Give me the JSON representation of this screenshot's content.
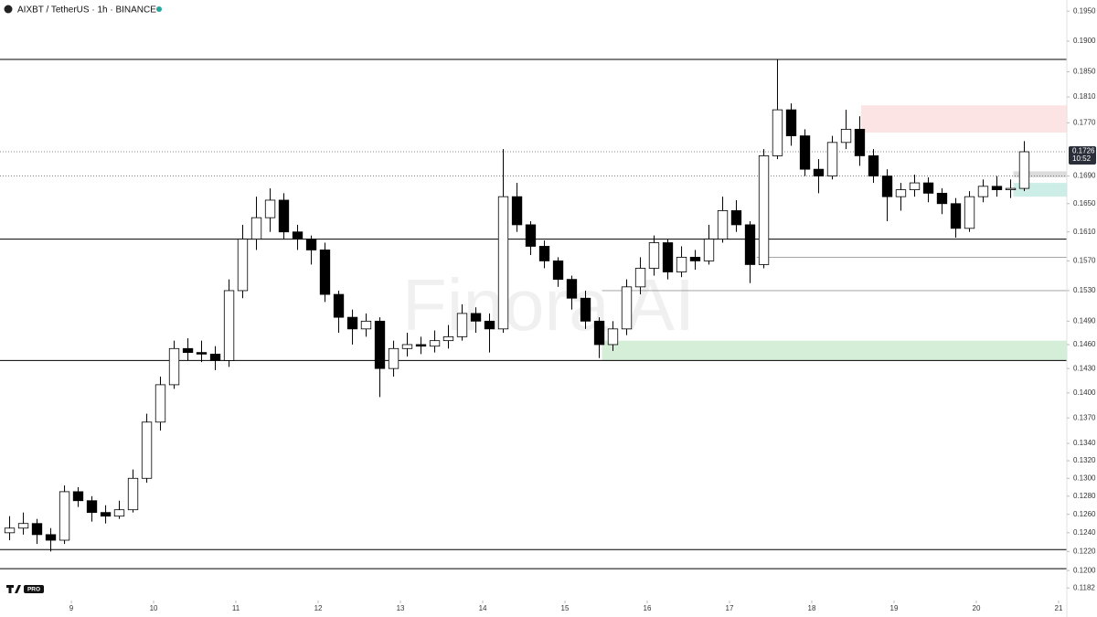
{
  "header": {
    "symbol": "AIXBT / TetherUS · 1h · BINANCE",
    "logo": "PRO"
  },
  "watermark": "Finora AI",
  "chart_data": {
    "type": "candlestick",
    "x": [
      8.25,
      8.417,
      8.583,
      8.75,
      8.917,
      9.083,
      9.25,
      9.417,
      9.583,
      9.75,
      9.917,
      10.083,
      10.25,
      10.417,
      10.583,
      10.75,
      10.917,
      11.083,
      11.25,
      11.417,
      11.583,
      11.75,
      11.917,
      12.083,
      12.25,
      12.417,
      12.583,
      12.75,
      12.917,
      13.083,
      13.25,
      13.417,
      13.583,
      13.75,
      13.917,
      14.083,
      14.25,
      14.417,
      14.583,
      14.75,
      14.917,
      15.083,
      15.25,
      15.417,
      15.583,
      15.75,
      15.917,
      16.083,
      16.25,
      16.417,
      16.583,
      16.75,
      16.917,
      17.083,
      17.25,
      17.417,
      17.583,
      17.75,
      17.917,
      18.083,
      18.25,
      18.417,
      18.583,
      18.75,
      18.917,
      19.083,
      19.25,
      19.417,
      19.583,
      19.75,
      19.917,
      20.083,
      20.25,
      20.417,
      20.583
    ],
    "open": [
      0.124,
      0.1245,
      0.125,
      0.1238,
      0.1232,
      0.1285,
      0.1275,
      0.1262,
      0.1258,
      0.1265,
      0.13,
      0.1365,
      0.141,
      0.1455,
      0.145,
      0.1448,
      0.144,
      0.153,
      0.16,
      0.163,
      0.1655,
      0.161,
      0.16,
      0.1585,
      0.1525,
      0.1495,
      0.148,
      0.149,
      0.143,
      0.1455,
      0.146,
      0.1458,
      0.1465,
      0.147,
      0.15,
      0.149,
      0.148,
      0.166,
      0.162,
      0.159,
      0.157,
      0.1545,
      0.152,
      0.149,
      0.146,
      0.148,
      0.1535,
      0.156,
      0.1595,
      0.1555,
      0.1575,
      0.157,
      0.16,
      0.164,
      0.162,
      0.1565,
      0.172,
      0.179,
      0.175,
      0.17,
      0.169,
      0.174,
      0.176,
      0.172,
      0.169,
      0.166,
      0.167,
      0.168,
      0.1665,
      0.165,
      0.1615,
      0.166,
      0.1675,
      0.167,
      0.1672
    ],
    "high": [
      0.1258,
      0.1262,
      0.1255,
      0.1245,
      0.1292,
      0.129,
      0.128,
      0.127,
      0.1275,
      0.131,
      0.1375,
      0.142,
      0.1465,
      0.1468,
      0.1465,
      0.1458,
      0.1545,
      0.162,
      0.166,
      0.1672,
      0.1665,
      0.162,
      0.1605,
      0.1595,
      0.153,
      0.1505,
      0.15,
      0.1495,
      0.1465,
      0.1475,
      0.147,
      0.1478,
      0.1485,
      0.1512,
      0.1508,
      0.15,
      0.173,
      0.168,
      0.1625,
      0.1598,
      0.1575,
      0.155,
      0.153,
      0.1495,
      0.149,
      0.1545,
      0.1575,
      0.1605,
      0.16,
      0.159,
      0.1585,
      0.162,
      0.166,
      0.1655,
      0.1625,
      0.173,
      0.187,
      0.18,
      0.176,
      0.1715,
      0.175,
      0.179,
      0.178,
      0.173,
      0.17,
      0.168,
      0.1692,
      0.1688,
      0.1672,
      0.1658,
      0.1668,
      0.1685,
      0.169,
      0.1685,
      0.1742
    ],
    "low": [
      0.1232,
      0.1238,
      0.1228,
      0.122,
      0.1228,
      0.1268,
      0.1252,
      0.125,
      0.1255,
      0.1262,
      0.1295,
      0.1355,
      0.1405,
      0.144,
      0.1438,
      0.1428,
      0.1432,
      0.152,
      0.1585,
      0.161,
      0.16,
      0.1585,
      0.1565,
      0.1515,
      0.1475,
      0.146,
      0.147,
      0.1395,
      0.142,
      0.1445,
      0.1448,
      0.145,
      0.1455,
      0.1465,
      0.1475,
      0.145,
      0.1475,
      0.161,
      0.1578,
      0.156,
      0.1535,
      0.1505,
      0.148,
      0.1443,
      0.1452,
      0.1472,
      0.1525,
      0.155,
      0.1545,
      0.1548,
      0.1558,
      0.1565,
      0.1595,
      0.161,
      0.154,
      0.156,
      0.1715,
      0.1735,
      0.169,
      0.1665,
      0.1685,
      0.173,
      0.1705,
      0.168,
      0.1625,
      0.164,
      0.166,
      0.1652,
      0.1635,
      0.1602,
      0.161,
      0.1652,
      0.166,
      0.1658,
      0.1668
    ],
    "close": [
      0.1245,
      0.125,
      0.1238,
      0.1232,
      0.1285,
      0.1275,
      0.1262,
      0.1258,
      0.1265,
      0.13,
      0.1365,
      0.141,
      0.1455,
      0.145,
      0.1448,
      0.144,
      0.153,
      0.16,
      0.163,
      0.1655,
      0.161,
      0.16,
      0.1585,
      0.1525,
      0.1495,
      0.148,
      0.149,
      0.143,
      0.1455,
      0.146,
      0.1458,
      0.1465,
      0.147,
      0.15,
      0.149,
      0.148,
      0.166,
      0.162,
      0.159,
      0.157,
      0.1545,
      0.152,
      0.149,
      0.146,
      0.148,
      0.1535,
      0.156,
      0.1595,
      0.1555,
      0.1575,
      0.157,
      0.16,
      0.164,
      0.162,
      0.1565,
      0.172,
      0.179,
      0.175,
      0.17,
      0.169,
      0.174,
      0.176,
      0.172,
      0.169,
      0.166,
      0.167,
      0.168,
      0.1665,
      0.165,
      0.1615,
      0.166,
      0.1675,
      0.167,
      0.1672,
      0.1726
    ],
    "up_color": "#ffffff",
    "down_color": "#000000",
    "xlim": [
      8.133,
      21.1
    ],
    "xticks": [
      9,
      10,
      11,
      12,
      13,
      14,
      15,
      16,
      17,
      18,
      19,
      20,
      21
    ],
    "ylim": [
      0.1171,
      0.1969
    ],
    "log_scale": true,
    "yticks": [
      {
        "value": 0.195,
        "label": "0.1950"
      },
      {
        "value": 0.19,
        "label": "0.1900"
      },
      {
        "value": 0.185,
        "label": "0.1850"
      },
      {
        "value": 0.181,
        "label": "0.1810"
      },
      {
        "value": 0.177,
        "label": "0.1770"
      },
      {
        "value": 0.169,
        "label": "0.1690"
      },
      {
        "value": 0.165,
        "label": "0.1650"
      },
      {
        "value": 0.161,
        "label": "0.1610"
      },
      {
        "value": 0.157,
        "label": "0.1570"
      },
      {
        "value": 0.153,
        "label": "0.1530"
      },
      {
        "value": 0.149,
        "label": "0.1490"
      },
      {
        "value": 0.146,
        "label": "0.1460"
      },
      {
        "value": 0.143,
        "label": "0.1430"
      },
      {
        "value": 0.14,
        "label": "0.1400"
      },
      {
        "value": 0.137,
        "label": "0.1370"
      },
      {
        "value": 0.134,
        "label": "0.1340"
      },
      {
        "value": 0.132,
        "label": "0.1320"
      },
      {
        "value": 0.13,
        "label": "0.1300"
      },
      {
        "value": 0.128,
        "label": "0.1280"
      },
      {
        "value": 0.126,
        "label": "0.1260"
      },
      {
        "value": 0.124,
        "label": "0.1240"
      },
      {
        "value": 0.122,
        "label": "0.1220"
      },
      {
        "value": 0.12,
        "label": "0.1200"
      },
      0.1182
    ],
    "last_price": 0.1726,
    "countdown": "10:52",
    "levels": [
      0.187,
      0.16,
      0.144,
      0.1222,
      0.1202
    ],
    "dotted_levels": [
      0.169
    ],
    "segments": [
      {
        "value": 0.1575,
        "from": 17.33
      },
      {
        "value": 0.153,
        "from": 15.45
      }
    ],
    "zones": [
      {
        "top": 0.1797,
        "bottom": 0.1755,
        "from": 18.6,
        "color": "#fde4e4"
      },
      {
        "top": 0.1465,
        "bottom": 0.144,
        "from": 15.45,
        "color": "#d4eed8"
      },
      {
        "top": 0.168,
        "bottom": 0.166,
        "from": 20.45,
        "color": "#cdeee6"
      },
      {
        "top": 0.1697,
        "bottom": 0.1688,
        "from": 20.45,
        "color": "#dcdcdc"
      }
    ]
  }
}
